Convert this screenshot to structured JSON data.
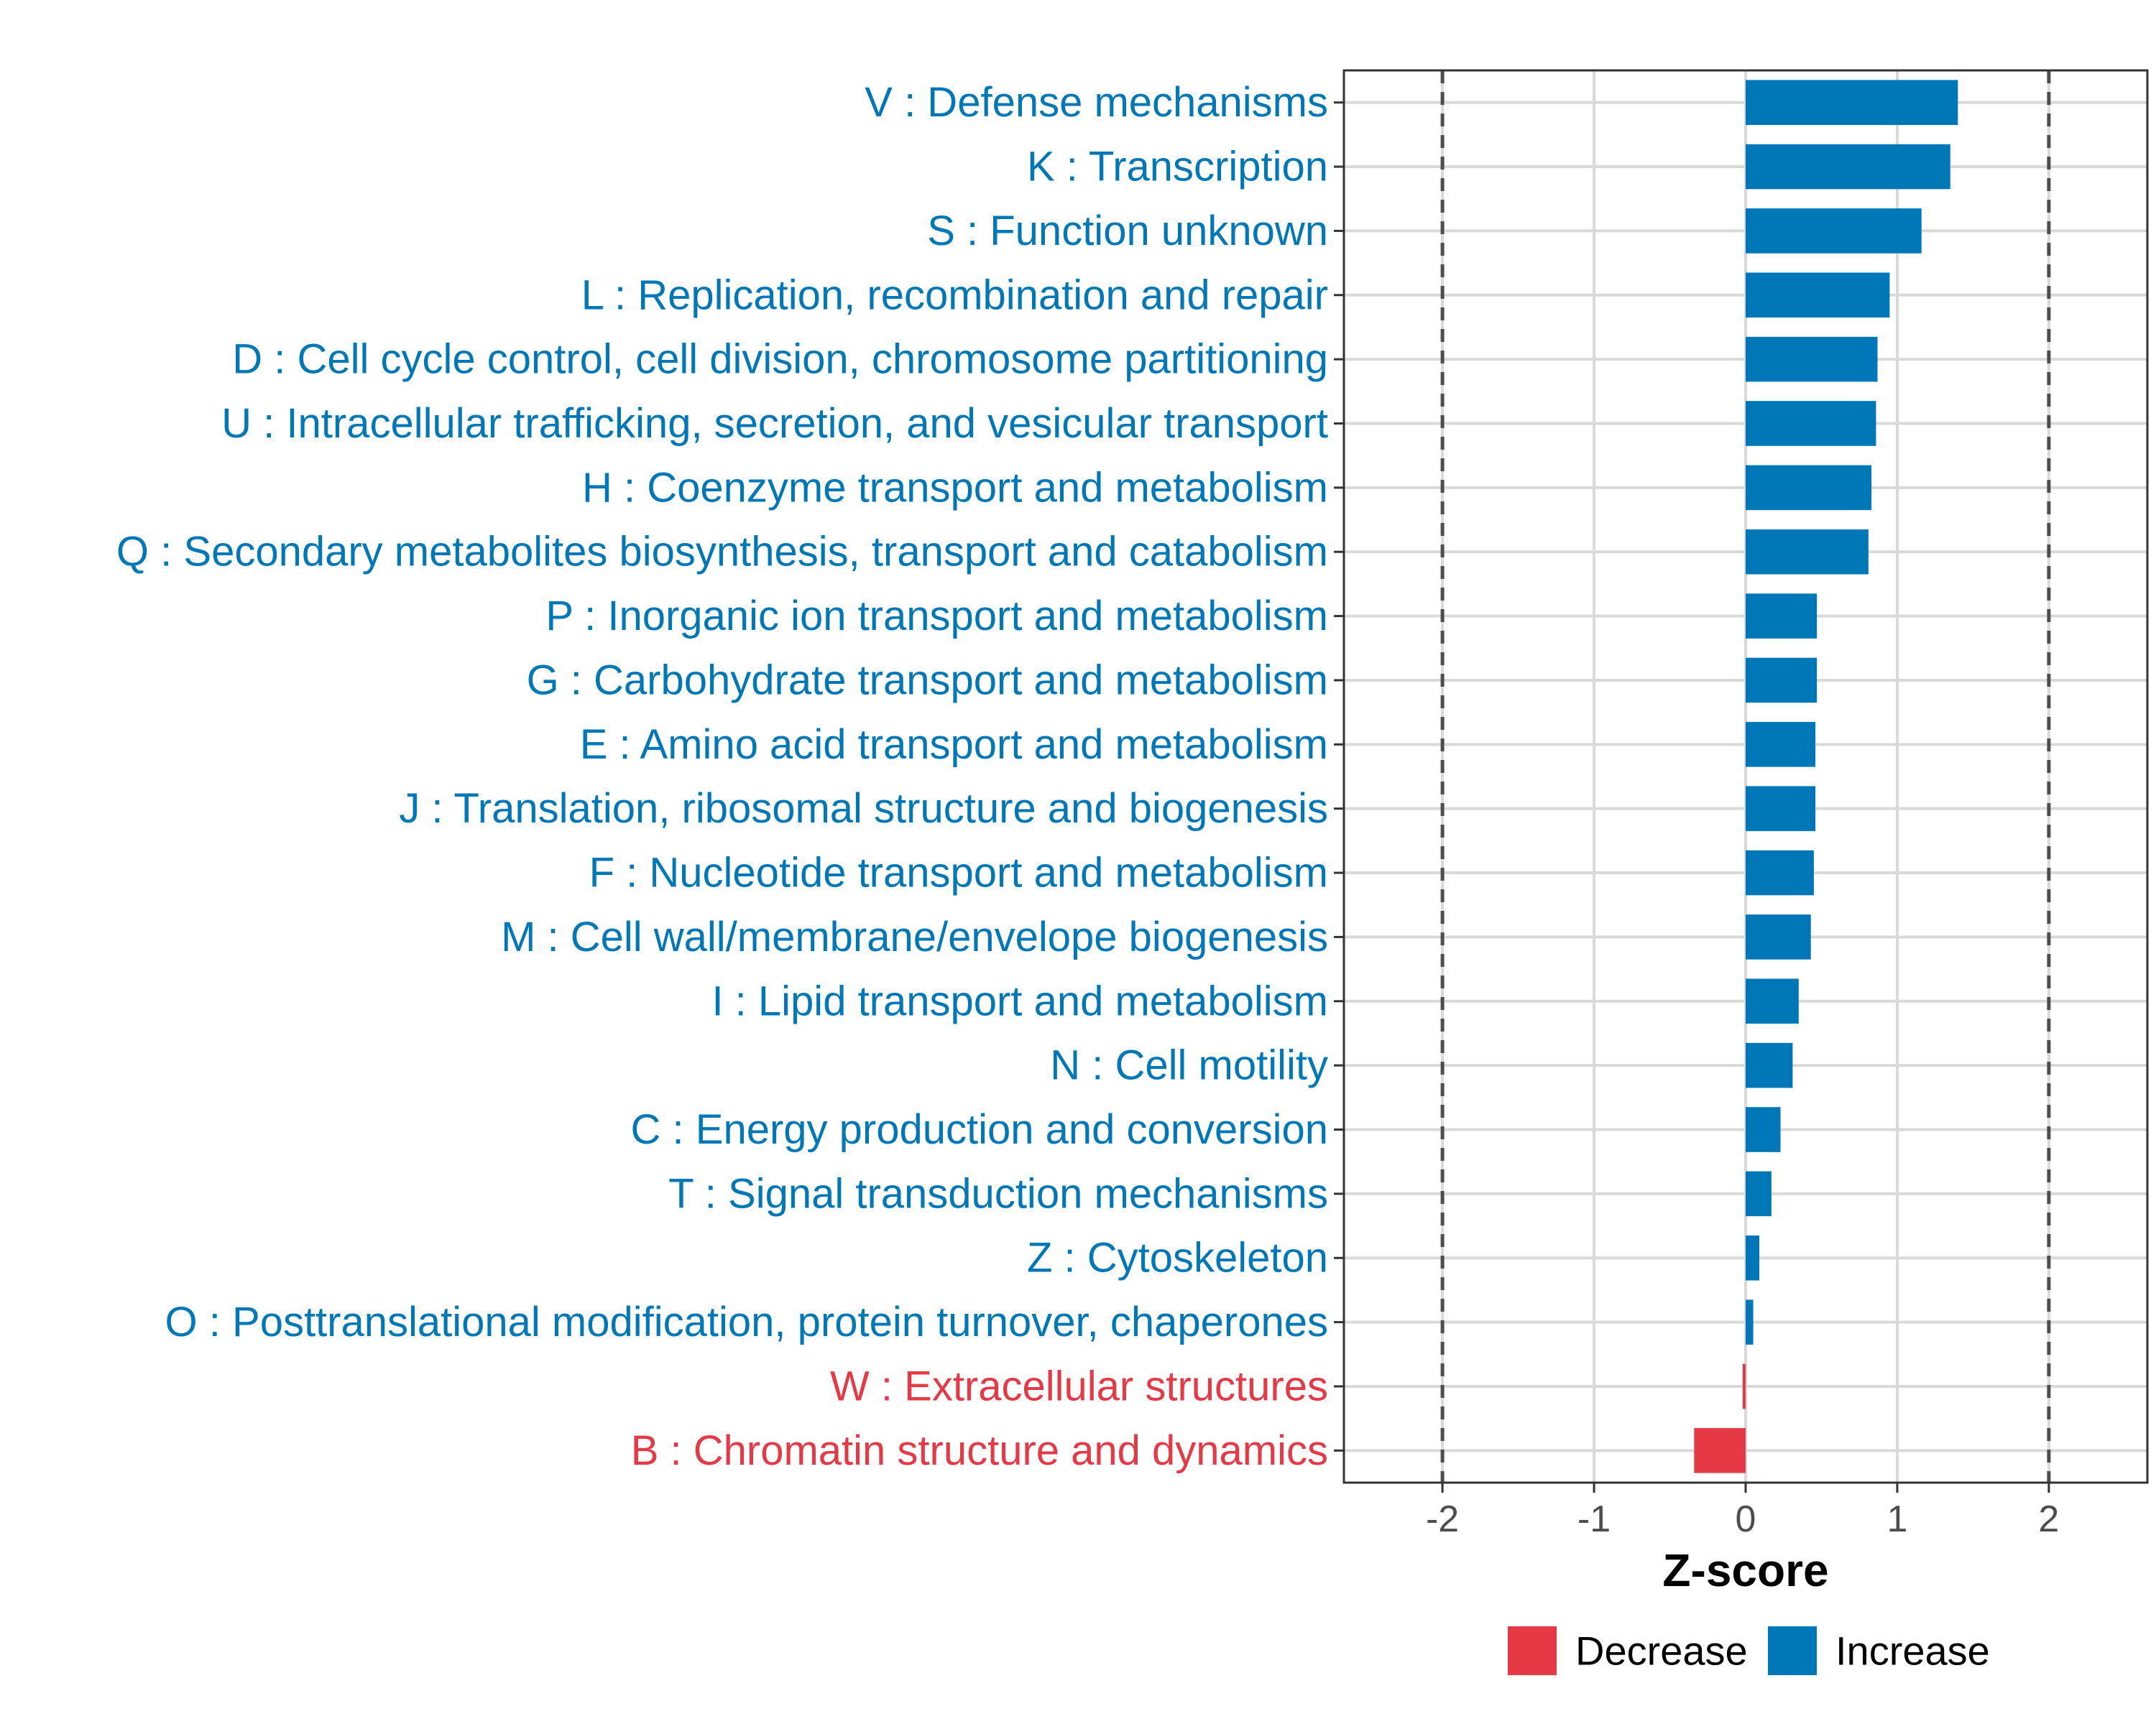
{
  "chart_data": {
    "type": "bar",
    "orientation": "horizontal",
    "title": "",
    "xlabel": "Z-score",
    "ylabel": "",
    "xlim": [
      -2.65,
      2.65
    ],
    "xticks": [
      -2,
      -1,
      0,
      1,
      2
    ],
    "xtick_labels": [
      "-2",
      "-1",
      "0",
      "1",
      "2"
    ],
    "reference_lines": [
      -2,
      2
    ],
    "grid": true,
    "categories": [
      "V : Defense mechanisms",
      "K : Transcription",
      "S : Function unknown",
      "L : Replication, recombination and repair",
      "D : Cell cycle control, cell division, chromosome partitioning",
      "U : Intracellular trafficking, secretion, and vesicular transport",
      "H : Coenzyme transport and metabolism",
      "Q : Secondary metabolites biosynthesis, transport and catabolism",
      "P : Inorganic ion transport and metabolism",
      "G : Carbohydrate transport and metabolism",
      "E : Amino acid transport and metabolism",
      "J : Translation, ribosomal structure and biogenesis",
      "F : Nucleotide transport and metabolism",
      "M : Cell wall/membrane/envelope biogenesis",
      "I : Lipid transport and metabolism",
      "N : Cell motility",
      "C : Energy production and conversion",
      "T : Signal transduction mechanisms",
      "Z : Cytoskeleton",
      "O : Posttranslational modification, protein turnover, chaperones",
      "W : Extracellular structures",
      "B : Chromatin structure and dynamics"
    ],
    "values": [
      1.4,
      1.35,
      1.16,
      0.95,
      0.87,
      0.86,
      0.83,
      0.81,
      0.47,
      0.47,
      0.46,
      0.46,
      0.45,
      0.43,
      0.35,
      0.31,
      0.23,
      0.17,
      0.09,
      0.05,
      -0.02,
      -0.34
    ],
    "groups": [
      "Increase",
      "Increase",
      "Increase",
      "Increase",
      "Increase",
      "Increase",
      "Increase",
      "Increase",
      "Increase",
      "Increase",
      "Increase",
      "Increase",
      "Increase",
      "Increase",
      "Increase",
      "Increase",
      "Increase",
      "Increase",
      "Increase",
      "Increase",
      "Decrease",
      "Decrease"
    ],
    "legend": {
      "position": "bottom",
      "entries": [
        {
          "label": "Decrease",
          "color": "#E63946"
        },
        {
          "label": "Increase",
          "color": "#0077B6"
        }
      ]
    }
  },
  "colors": {
    "increase": "#0077B6",
    "decrease": "#E63946",
    "grid": "#d9d9d9",
    "frame": "#333333",
    "refline": "#4d4d4d"
  }
}
